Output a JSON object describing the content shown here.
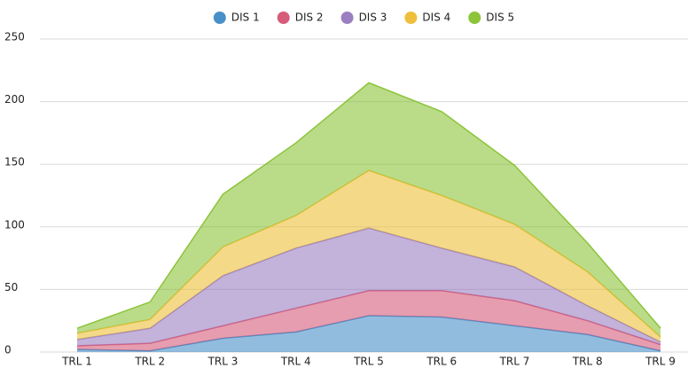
{
  "chart_data": {
    "type": "stacked_area",
    "categories": [
      "TRL 1",
      "TRL 2",
      "TRL 3",
      "TRL 4",
      "TRL 5",
      "TRL 6",
      "TRL 7",
      "TRL 8",
      "TRL 9"
    ],
    "series": [
      {
        "name": "DIS 1",
        "color": "#4a90c8",
        "values": [
          2,
          1,
          11,
          16,
          29,
          28,
          21,
          14,
          1
        ]
      },
      {
        "name": "DIS 2",
        "color": "#d65c7a",
        "values": [
          3,
          6,
          10,
          19,
          20,
          21,
          20,
          11,
          5
        ]
      },
      {
        "name": "DIS 3",
        "color": "#9b7fc0",
        "values": [
          5,
          12,
          40,
          48,
          50,
          34,
          27,
          12,
          2
        ]
      },
      {
        "name": "DIS 4",
        "color": "#edbf3a",
        "values": [
          5,
          7,
          23,
          26,
          46,
          42,
          34,
          27,
          4
        ]
      },
      {
        "name": "DIS 5",
        "color": "#8cc43a",
        "values": [
          4,
          14,
          42,
          58,
          70,
          67,
          47,
          23,
          7
        ]
      }
    ],
    "ylim": [
      0,
      250
    ],
    "yticks": [
      0,
      50,
      100,
      150,
      200,
      250
    ],
    "grid": true,
    "legend": "top"
  }
}
